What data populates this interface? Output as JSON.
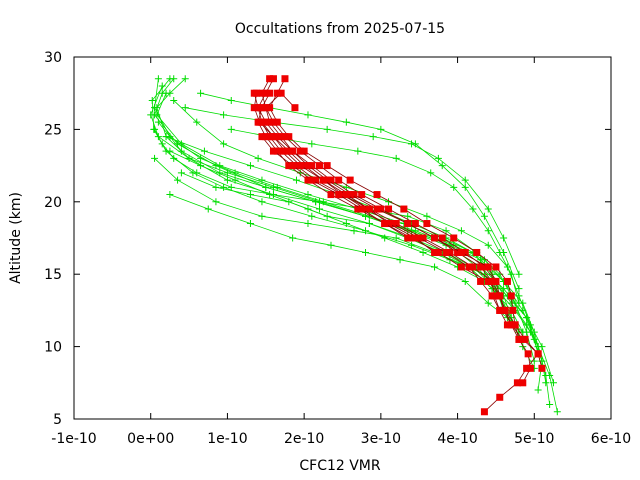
{
  "chart_data": {
    "type": "scatter",
    "title": "Occultations from 2025-07-15",
    "xlabel": "CFC12 VMR",
    "ylabel": "Altitude (km)",
    "xlim": [
      -1e-10,
      6e-10
    ],
    "ylim": [
      5,
      30
    ],
    "x_ticks": [
      -1e-10,
      0,
      1e-10,
      2e-10,
      3e-10,
      4e-10,
      5e-10,
      6e-10
    ],
    "x_tick_labels": [
      "-1e-10",
      "0e+00",
      "1e-10",
      "2e-10",
      "3e-10",
      "4e-10",
      "5e-10",
      "6e-10"
    ],
    "y_ticks": [
      5,
      10,
      15,
      20,
      25,
      30
    ],
    "y_tick_labels": [
      "5",
      "10",
      "15",
      "20",
      "25",
      "30"
    ],
    "grid": false,
    "legend": "none",
    "colors": {
      "green": "#00dd00",
      "red": "#ee0000",
      "red_line": "#880000",
      "axis": "#000000"
    },
    "green_series": [
      {
        "x": [
          2.5e-11,
          2e-12,
          4e-12,
          2e-11,
          5.5e-11,
          9.5e-11,
          1.45e-10,
          2.1e-10,
          2.8e-10,
          3.4e-10,
          3.9e-10,
          4.35e-10,
          4.65e-10,
          4.9e-10,
          5.05e-10,
          5.15e-10,
          5.2e-10
        ],
        "y": [
          28.5,
          27,
          25,
          23.5,
          22,
          21,
          20,
          19,
          18,
          17,
          16,
          15,
          13.5,
          12,
          10,
          8,
          6
        ]
      },
      {
        "x": [
          1e-11,
          5e-12,
          2.5e-11,
          6.5e-11,
          1.1e-10,
          1.65e-10,
          2.25e-10,
          2.85e-10,
          3.45e-10,
          3.95e-10,
          4.35e-10,
          4.6e-10,
          4.85e-10,
          5e-10,
          5.1e-10,
          5.05e-10
        ],
        "y": [
          28.5,
          26.5,
          24.5,
          23,
          22,
          21,
          20,
          19,
          18,
          17,
          16,
          14.5,
          13,
          11,
          9,
          7
        ]
      },
      {
        "x": [
          1.5e-11,
          0.0,
          1e-11,
          5e-11,
          1e-10,
          1.6e-10,
          2.2e-10,
          2.85e-10,
          3.4e-10,
          3.85e-10,
          4.2e-10,
          4.5e-10,
          4.75e-10,
          4.95e-10,
          5.1e-10,
          5.15e-10
        ],
        "y": [
          28,
          26,
          24.5,
          23,
          21.5,
          20.5,
          19.5,
          18.5,
          17.5,
          16.5,
          15.5,
          14,
          12.5,
          11,
          9,
          7.5
        ]
      },
      {
        "x": [
          2e-11,
          8e-12,
          4e-11,
          9e-11,
          1.45e-10,
          2.05e-10,
          2.7e-10,
          3.3e-10,
          3.8e-10,
          4.2e-10,
          4.45e-10,
          4.7e-10,
          4.9e-10,
          5.05e-10,
          5.2e-10,
          5.3e-10
        ],
        "y": [
          27.5,
          26,
          24,
          22.5,
          21.5,
          20.5,
          19.5,
          18.5,
          17.5,
          16.5,
          15,
          13,
          11.5,
          10,
          8,
          5.5
        ]
      },
      {
        "x": [
          3e-11,
          1.5e-11,
          5e-12,
          3.5e-11,
          8.5e-11,
          1.5e-10,
          2.15e-10,
          2.8e-10,
          3.4e-10,
          3.9e-10,
          4.3e-10,
          4.6e-10,
          4.85e-10,
          5e-10,
          5.1e-10
        ],
        "y": [
          28.5,
          27.5,
          26,
          24,
          22.5,
          21,
          20,
          19,
          18,
          17,
          16,
          14.5,
          12.5,
          10.5,
          8.5
        ]
      },
      {
        "x": [
          4.5e-11,
          2.5e-11,
          8e-12,
          2e-11,
          5e-11,
          1e-10,
          1.6e-10,
          2.2e-10,
          2.8e-10,
          3.35e-10,
          3.85e-10,
          4.3e-10,
          4.6e-10,
          4.9e-10,
          5.1e-10,
          5.25e-10
        ],
        "y": [
          28.5,
          27.5,
          26.5,
          24.5,
          23,
          22,
          21,
          20,
          19,
          18,
          17,
          15.5,
          14,
          12,
          10,
          7.5
        ]
      },
      {
        "x": [
          3e-11,
          6e-11,
          9.5e-11,
          1.4e-10,
          1.95e-10,
          2.55e-10,
          3.1e-10,
          3.6e-10,
          4.05e-10,
          4.4e-10,
          4.65e-10,
          4.8e-10,
          4.95e-10,
          5.05e-10
        ],
        "y": [
          27,
          25.5,
          24,
          23,
          22,
          21,
          20,
          19,
          18,
          17,
          15.5,
          13.5,
          11.5,
          9.5
        ]
      },
      {
        "x": [
          5e-12,
          1.5e-11,
          3e-11,
          6e-11,
          1.05e-10,
          1.6e-10,
          2.2e-10,
          2.8e-10,
          3.35e-10,
          3.85e-10,
          4.25e-10,
          4.55e-10,
          4.75e-10,
          4.9e-10,
          5e-10
        ],
        "y": [
          25,
          24,
          23,
          22,
          21,
          20.5,
          20,
          19.5,
          19,
          18,
          16.5,
          15,
          13,
          11,
          9
        ]
      },
      {
        "x": [
          2e-11,
          7e-11,
          1.3e-10,
          1.9e-10,
          2.45e-10,
          2.95e-10,
          3.4e-10,
          3.85e-10,
          4.2e-10,
          4.45e-10,
          4.6e-10,
          4.7e-10,
          4.85e-10,
          5e-10
        ],
        "y": [
          24.5,
          23.5,
          22.5,
          21.5,
          20.5,
          19.5,
          18.5,
          17.5,
          16.5,
          15,
          13.5,
          12,
          10,
          8.5
        ]
      },
      {
        "x": [
          2.5e-11,
          6.5e-11,
          1.1e-10,
          1.55e-10,
          2.05e-10,
          2.55e-10,
          3.05e-10,
          3.55e-10,
          4e-10,
          4.35e-10,
          4.55e-10,
          4.65e-10,
          4.7e-10
        ],
        "y": [
          23.5,
          22.5,
          21.5,
          20.5,
          19.5,
          18.5,
          17.5,
          16.5,
          15.5,
          14.5,
          13.5,
          12.5,
          11.5
        ]
      },
      {
        "x": [
          1e-11,
          4e-11,
          9e-11,
          1.5e-10,
          2.15e-10,
          2.8e-10,
          3.4e-10,
          3.9e-10,
          4.25e-10,
          4.5e-10,
          4.6e-10,
          4.7e-10
        ],
        "y": [
          25.5,
          23.5,
          22,
          21,
          20,
          19,
          18,
          17,
          15.5,
          14,
          12.5,
          11.5
        ]
      },
      {
        "x": [
          4e-11,
          8.5e-11,
          1.3e-10,
          1.8e-10,
          2.3e-10,
          2.85e-10,
          3.35e-10,
          3.8e-10,
          4.15e-10,
          4.45e-10,
          4.65e-10,
          4.8e-10
        ],
        "y": [
          22,
          21,
          20.5,
          20,
          19,
          18.5,
          17.5,
          16.5,
          15.5,
          14,
          12.5,
          11
        ]
      },
      {
        "x": [
          5e-12,
          3.5e-11,
          8.5e-11,
          1.45e-10,
          2.05e-10,
          2.65e-10,
          3.2e-10,
          3.7e-10,
          4.15e-10,
          4.45e-10,
          4.7e-10,
          4.85e-10
        ],
        "y": [
          23,
          21.5,
          20,
          19,
          18.5,
          18,
          17.5,
          16.5,
          15.5,
          14,
          12.5,
          11
        ]
      },
      {
        "x": [
          2.5e-11,
          7.5e-11,
          1.3e-10,
          1.85e-10,
          2.35e-10,
          2.8e-10,
          3.25e-10,
          3.7e-10,
          4.1e-10,
          4.4e-10,
          4.65e-10,
          4.85e-10
        ],
        "y": [
          20.5,
          19.5,
          18.5,
          17.5,
          17,
          16.5,
          16,
          15.5,
          14.5,
          13,
          12,
          11
        ]
      },
      {
        "x": [
          1.05e-10,
          1.55e-10,
          2.1e-10,
          2.7e-10,
          3.2e-10,
          3.65e-10,
          3.95e-10,
          4.2e-10,
          4.4e-10,
          4.55e-10,
          4.7e-10,
          4.8e-10
        ],
        "y": [
          25,
          24.5,
          24,
          23.5,
          23,
          22,
          21,
          19.5,
          18,
          16.5,
          15,
          13
        ]
      },
      {
        "x": [
          4.5e-11,
          9.5e-11,
          1.6e-10,
          2.3e-10,
          2.9e-10,
          3.4e-10,
          3.75e-10,
          4.1e-10,
          4.4e-10,
          4.6e-10,
          4.8e-10
        ],
        "y": [
          26.5,
          26,
          25.5,
          25,
          24.5,
          24,
          23,
          21.5,
          19.5,
          17.5,
          15
        ]
      },
      {
        "x": [
          6.5e-11,
          1.05e-10,
          1.55e-10,
          2.05e-10,
          2.55e-10,
          3e-10,
          3.45e-10,
          3.8e-10,
          4.1e-10,
          4.35e-10,
          4.6e-10,
          4.8e-10
        ],
        "y": [
          27.5,
          27,
          26.5,
          26,
          25.5,
          25,
          24,
          22.5,
          21,
          19,
          16.5,
          14
        ]
      }
    ],
    "red_series": [
      {
        "x": [
          4.35e-10,
          4.55e-10,
          4.78e-10,
          4.9e-10,
          5.05e-10,
          4.85e-10,
          4.7e-10,
          4.6e-10,
          4.55e-10,
          4.4e-10,
          4.05e-10,
          3.75e-10,
          3.4e-10,
          3.05e-10,
          2.7e-10,
          2.35e-10,
          2.05e-10,
          1.8e-10,
          1.65e-10,
          1.5e-10,
          1.4e-10,
          1.45e-10,
          1.55e-10
        ],
        "y": [
          5.5,
          6.5,
          7.5,
          8.5,
          9.5,
          10.5,
          11.5,
          12.5,
          13.5,
          14.5,
          15.5,
          16.5,
          17.5,
          18.5,
          19.5,
          20.5,
          21.5,
          22.5,
          23.5,
          24.5,
          25.5,
          26.5,
          27.5
        ]
      },
      {
        "x": [
          4.85e-10,
          4.95e-10,
          4.92e-10,
          4.8e-10,
          4.7e-10,
          4.62e-10,
          4.55e-10,
          4.45e-10,
          4.2e-10,
          3.9e-10,
          3.55e-10,
          3.2e-10,
          2.85e-10,
          2.5e-10,
          2.15e-10,
          1.9e-10,
          1.7e-10,
          1.55e-10,
          1.45e-10,
          1.4e-10,
          1.5e-10,
          1.6e-10
        ],
        "y": [
          7.5,
          8.5,
          9.5,
          10.5,
          11.5,
          12.5,
          13.5,
          14.5,
          15.5,
          16.5,
          17.5,
          18.5,
          19.5,
          20.5,
          21.5,
          22.5,
          23.5,
          24.5,
          25.5,
          26.5,
          27.5,
          28.5
        ]
      },
      {
        "x": [
          5.1e-10,
          5.05e-10,
          4.88e-10,
          4.75e-10,
          4.72e-10,
          4.7e-10,
          4.65e-10,
          4.5e-10,
          4.25e-10,
          3.95e-10,
          3.6e-10,
          3.3e-10,
          2.95e-10,
          2.6e-10,
          2.3e-10,
          2e-10,
          1.8e-10,
          1.65e-10,
          1.55e-10,
          1.65e-10,
          1.75e-10
        ],
        "y": [
          8.5,
          9.5,
          10.5,
          11.5,
          12.5,
          13.5,
          14.5,
          15.5,
          16.5,
          17.5,
          18.5,
          19.5,
          20.5,
          21.5,
          22.5,
          23.5,
          24.5,
          25.5,
          26.5,
          27.5,
          28.5
        ]
      },
      {
        "x": [
          4.8e-10,
          4.75e-10,
          4.62e-10,
          4.55e-10,
          4.5e-10,
          4.35e-10,
          4.1e-10,
          3.8e-10,
          3.45e-10,
          3.1e-10,
          2.75e-10,
          2.45e-10,
          2.2e-10,
          1.95e-10,
          1.75e-10,
          1.6e-10,
          1.5e-10,
          1.45e-10,
          1.55e-10
        ],
        "y": [
          10.5,
          11.5,
          12.5,
          13.5,
          14.5,
          15.5,
          16.5,
          17.5,
          18.5,
          19.5,
          20.5,
          21.5,
          22.5,
          23.5,
          24.5,
          25.5,
          26.5,
          27.5,
          28.5
        ]
      },
      {
        "x": [
          4.65e-10,
          4.55e-10,
          4.48e-10,
          4.45e-10,
          4.3e-10,
          4e-10,
          3.7e-10,
          3.35e-10,
          3e-10,
          2.65e-10,
          2.35e-10,
          2.1e-10,
          1.85e-10,
          1.7e-10,
          1.55e-10,
          1.5e-10,
          1.7e-10,
          1.88e-10
        ],
        "y": [
          11.5,
          12.5,
          13.5,
          14.5,
          15.5,
          16.5,
          17.5,
          18.5,
          19.5,
          20.5,
          21.5,
          22.5,
          23.5,
          24.5,
          25.5,
          26.5,
          27.5,
          26.5
        ]
      },
      {
        "x": [
          4.55e-10,
          4.45e-10,
          4.3e-10,
          4.15e-10,
          3.85e-10,
          3.5e-10,
          3.15e-10,
          2.8e-10,
          2.5e-10,
          2.25e-10,
          2e-10,
          1.8e-10,
          1.6e-10,
          1.42e-10,
          1.35e-10,
          1.38e-10
        ],
        "y": [
          12.5,
          13.5,
          14.5,
          15.5,
          16.5,
          17.5,
          18.5,
          19.5,
          20.5,
          21.5,
          22.5,
          23.5,
          24.5,
          25.5,
          26.5,
          27.5
        ]
      },
      {
        "x": [
          4.5e-10,
          4.4e-10,
          4.05e-10,
          3.7e-10,
          3.35e-10,
          2.95e-10,
          2.6e-10,
          2.3e-10,
          2.05e-10,
          1.85e-10,
          1.65e-10,
          1.5e-10,
          1.4e-10,
          1.35e-10
        ],
        "y": [
          14.5,
          15.5,
          16.5,
          17.5,
          18.5,
          19.5,
          20.5,
          21.5,
          22.5,
          23.5,
          24.5,
          25.5,
          26.5,
          27.5
        ]
      },
      {
        "x": [
          3.7e-10,
          3.45e-10,
          3.1e-10,
          2.85e-10,
          2.55e-10,
          2.25e-10,
          1.95e-10,
          1.75e-10,
          1.6e-10,
          1.45e-10
        ],
        "y": [
          16.5,
          17.5,
          18.5,
          19.5,
          20.5,
          21.5,
          22.5,
          23.5,
          24.5,
          25.5
        ]
      },
      {
        "x": [
          3.35e-10,
          3.05e-10,
          2.75e-10,
          2.45e-10,
          2.1e-10,
          1.85e-10,
          1.6e-10,
          1.45e-10
        ],
        "y": [
          17.5,
          18.5,
          19.5,
          20.5,
          21.5,
          22.5,
          23.5,
          24.5
        ]
      }
    ]
  }
}
